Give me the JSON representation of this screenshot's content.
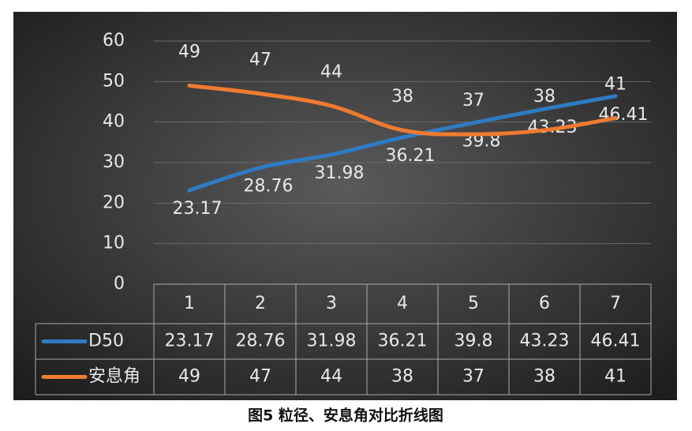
{
  "chart_data": {
    "type": "line",
    "caption": "图5 粒径、安息角对比折线图",
    "categories": [
      "1",
      "2",
      "3",
      "4",
      "5",
      "6",
      "7"
    ],
    "series": [
      {
        "name": "D50",
        "color": "#2e7bc4",
        "values": [
          23.17,
          28.76,
          31.98,
          36.21,
          39.8,
          43.23,
          46.41
        ]
      },
      {
        "name": "安息角",
        "color": "#ee7b30",
        "values": [
          49,
          47,
          44,
          38,
          37,
          38,
          41
        ]
      }
    ],
    "ylim": [
      0,
      60
    ],
    "yticks": [
      0,
      10,
      20,
      30,
      40,
      50,
      60
    ],
    "grid": true,
    "data_table": true
  }
}
